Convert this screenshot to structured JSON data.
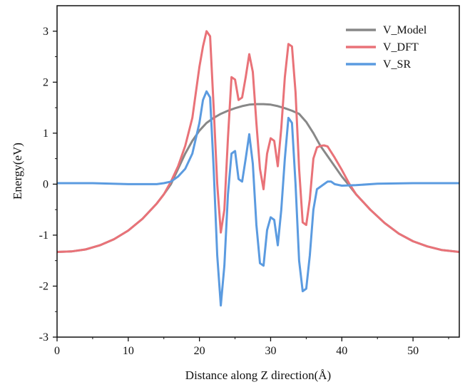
{
  "chart_data": {
    "type": "line",
    "title": "",
    "xlabel": "Distance along Z direction(Å)",
    "ylabel": "Energy(eV)",
    "xlim": [
      0,
      56.5
    ],
    "ylim": [
      -3,
      3.5
    ],
    "xticks": [
      0,
      10,
      20,
      30,
      40,
      50
    ],
    "yticks": [
      -3,
      -2,
      -1,
      0,
      1,
      2,
      3
    ],
    "legend_position": "top-right",
    "grid": false,
    "series": [
      {
        "name": "V_Model",
        "color": "#888888",
        "points": [
          [
            0,
            -1.33
          ],
          [
            2,
            -1.32
          ],
          [
            4,
            -1.28
          ],
          [
            6,
            -1.2
          ],
          [
            8,
            -1.08
          ],
          [
            10,
            -0.91
          ],
          [
            12,
            -0.68
          ],
          [
            14,
            -0.38
          ],
          [
            15,
            -0.2
          ],
          [
            16,
            0.0
          ],
          [
            17,
            0.3
          ],
          [
            18,
            0.6
          ],
          [
            19,
            0.85
          ],
          [
            20,
            1.05
          ],
          [
            21,
            1.2
          ],
          [
            22,
            1.3
          ],
          [
            23,
            1.38
          ],
          [
            24,
            1.44
          ],
          [
            25,
            1.49
          ],
          [
            26,
            1.53
          ],
          [
            27,
            1.56
          ],
          [
            28,
            1.57
          ],
          [
            29,
            1.57
          ],
          [
            30,
            1.56
          ],
          [
            31,
            1.53
          ],
          [
            32,
            1.49
          ],
          [
            33,
            1.44
          ],
          [
            34,
            1.38
          ],
          [
            35,
            1.22
          ],
          [
            36,
            1.0
          ],
          [
            37,
            0.75
          ],
          [
            38,
            0.55
          ],
          [
            39,
            0.35
          ],
          [
            40,
            0.15
          ],
          [
            41,
            -0.02
          ],
          [
            42,
            -0.2
          ],
          [
            44,
            -0.5
          ],
          [
            46,
            -0.76
          ],
          [
            48,
            -0.97
          ],
          [
            50,
            -1.12
          ],
          [
            52,
            -1.22
          ],
          [
            54,
            -1.29
          ],
          [
            56.5,
            -1.33
          ]
        ]
      },
      {
        "name": "V_DFT",
        "color": "#e97278",
        "points": [
          [
            0,
            -1.33
          ],
          [
            2,
            -1.32
          ],
          [
            4,
            -1.28
          ],
          [
            6,
            -1.2
          ],
          [
            8,
            -1.08
          ],
          [
            10,
            -0.91
          ],
          [
            12,
            -0.68
          ],
          [
            14,
            -0.38
          ],
          [
            15,
            -0.2
          ],
          [
            16,
            0.05
          ],
          [
            17,
            0.35
          ],
          [
            18,
            0.75
          ],
          [
            19,
            1.3
          ],
          [
            20,
            2.3
          ],
          [
            20.5,
            2.7
          ],
          [
            21,
            3.0
          ],
          [
            21.5,
            2.9
          ],
          [
            22,
            1.5
          ],
          [
            22.5,
            0.0
          ],
          [
            23,
            -0.95
          ],
          [
            23.5,
            -0.5
          ],
          [
            24,
            0.9
          ],
          [
            24.5,
            2.1
          ],
          [
            25,
            2.05
          ],
          [
            25.5,
            1.65
          ],
          [
            26,
            1.7
          ],
          [
            26.5,
            2.1
          ],
          [
            27,
            2.55
          ],
          [
            27.5,
            2.2
          ],
          [
            28,
            1.2
          ],
          [
            28.5,
            0.3
          ],
          [
            29,
            -0.1
          ],
          [
            29.5,
            0.6
          ],
          [
            30,
            0.9
          ],
          [
            30.5,
            0.85
          ],
          [
            31,
            0.35
          ],
          [
            31.5,
            1.1
          ],
          [
            32,
            2.1
          ],
          [
            32.5,
            2.75
          ],
          [
            33,
            2.7
          ],
          [
            33.5,
            1.8
          ],
          [
            34,
            0.3
          ],
          [
            34.5,
            -0.75
          ],
          [
            35,
            -0.8
          ],
          [
            35.5,
            -0.3
          ],
          [
            36,
            0.5
          ],
          [
            36.5,
            0.72
          ],
          [
            37,
            0.75
          ],
          [
            37.5,
            0.76
          ],
          [
            38,
            0.74
          ],
          [
            39,
            0.52
          ],
          [
            40,
            0.28
          ],
          [
            41,
            0.02
          ],
          [
            42,
            -0.2
          ],
          [
            44,
            -0.5
          ],
          [
            46,
            -0.76
          ],
          [
            48,
            -0.97
          ],
          [
            50,
            -1.12
          ],
          [
            52,
            -1.22
          ],
          [
            54,
            -1.29
          ],
          [
            56.5,
            -1.33
          ]
        ]
      },
      {
        "name": "V_SR",
        "color": "#5b9be0",
        "points": [
          [
            0,
            0.02
          ],
          [
            5,
            0.02
          ],
          [
            10,
            0.0
          ],
          [
            12,
            0.0
          ],
          [
            14,
            0.0
          ],
          [
            15,
            0.02
          ],
          [
            16,
            0.05
          ],
          [
            17,
            0.15
          ],
          [
            18,
            0.3
          ],
          [
            19,
            0.6
          ],
          [
            20,
            1.2
          ],
          [
            20.5,
            1.65
          ],
          [
            21,
            1.82
          ],
          [
            21.5,
            1.7
          ],
          [
            22,
            0.3
          ],
          [
            22.5,
            -1.4
          ],
          [
            23,
            -2.38
          ],
          [
            23.5,
            -1.6
          ],
          [
            24,
            -0.2
          ],
          [
            24.5,
            0.6
          ],
          [
            25,
            0.65
          ],
          [
            25.5,
            0.1
          ],
          [
            26,
            0.05
          ],
          [
            26.5,
            0.5
          ],
          [
            27,
            0.98
          ],
          [
            27.5,
            0.4
          ],
          [
            28,
            -0.8
          ],
          [
            28.5,
            -1.55
          ],
          [
            29,
            -1.6
          ],
          [
            29.5,
            -0.9
          ],
          [
            30,
            -0.65
          ],
          [
            30.5,
            -0.7
          ],
          [
            31,
            -1.2
          ],
          [
            31.5,
            -0.5
          ],
          [
            32,
            0.5
          ],
          [
            32.5,
            1.3
          ],
          [
            33,
            1.2
          ],
          [
            33.5,
            0.0
          ],
          [
            34,
            -1.5
          ],
          [
            34.5,
            -2.1
          ],
          [
            35,
            -2.05
          ],
          [
            35.5,
            -1.4
          ],
          [
            36,
            -0.5
          ],
          [
            36.5,
            -0.1
          ],
          [
            37,
            -0.05
          ],
          [
            37.5,
            0.0
          ],
          [
            38,
            0.05
          ],
          [
            38.5,
            0.05
          ],
          [
            39,
            0.0
          ],
          [
            40,
            -0.03
          ],
          [
            42,
            -0.02
          ],
          [
            45,
            0.01
          ],
          [
            50,
            0.02
          ],
          [
            56.5,
            0.02
          ]
        ]
      }
    ]
  }
}
